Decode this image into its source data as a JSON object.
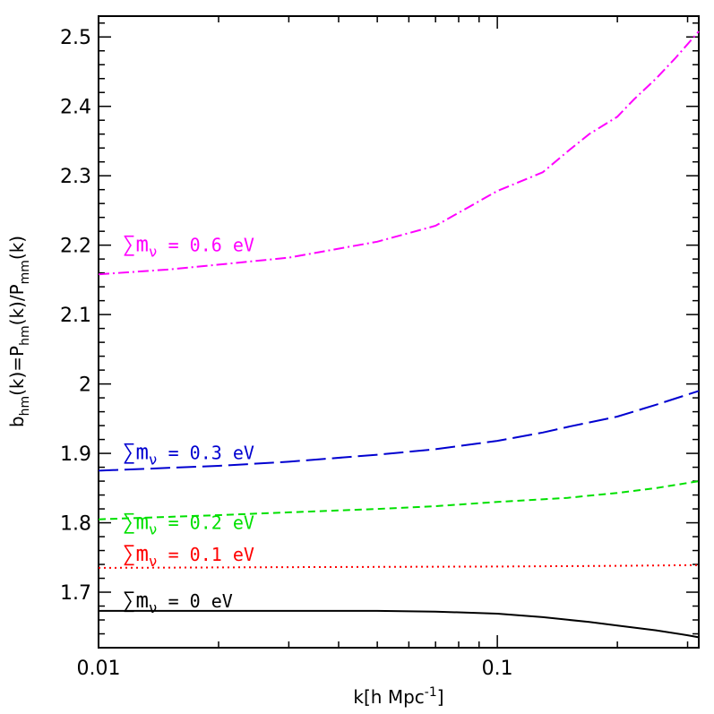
{
  "chart_data": {
    "type": "line",
    "xlabel": "k[h Mpc⁻¹]",
    "ylabel": "b_hm(k)=P_hm(k)/P_mm(k)",
    "xscale": "log",
    "xlim": [
      0.01,
      0.32
    ],
    "ylim": [
      1.62,
      2.53
    ],
    "x_ticks": [
      0.01,
      0.1
    ],
    "x_tick_labels": [
      "0.01",
      "0.1"
    ],
    "y_ticks": [
      1.7,
      1.8,
      1.9,
      2.0,
      2.1,
      2.2,
      2.3,
      2.4,
      2.5
    ],
    "y_tick_labels": [
      "1.7",
      "1.8",
      "1.9",
      "2",
      "2.1",
      "2.2",
      "2.3",
      "2.4",
      "2.5"
    ],
    "grid": false,
    "legend": "none",
    "series": [
      {
        "name": "∑m_ν = 0 eV",
        "color": "#000000",
        "style": "solid",
        "x": [
          0.01,
          0.02,
          0.03,
          0.05,
          0.07,
          0.1,
          0.13,
          0.17,
          0.2,
          0.25,
          0.3,
          0.32
        ],
        "y": [
          1.673,
          1.673,
          1.673,
          1.673,
          1.672,
          1.669,
          1.664,
          1.657,
          1.652,
          1.645,
          1.638,
          1.635
        ]
      },
      {
        "name": "∑m_ν = 0.1 eV",
        "color": "#ff0000",
        "style": "dotted",
        "x": [
          0.01,
          0.03,
          0.1,
          0.2,
          0.32
        ],
        "y": [
          1.735,
          1.736,
          1.737,
          1.738,
          1.739
        ]
      },
      {
        "name": "∑m_ν = 0.2 eV",
        "color": "#00e000",
        "style": "dashed",
        "x": [
          0.01,
          0.02,
          0.03,
          0.05,
          0.07,
          0.1,
          0.15,
          0.2,
          0.25,
          0.32
        ],
        "y": [
          1.805,
          1.811,
          1.815,
          1.82,
          1.824,
          1.83,
          1.836,
          1.843,
          1.85,
          1.86
        ]
      },
      {
        "name": "∑m_ν = 0.3 eV",
        "color": "#0000d0",
        "style": "longdash",
        "x": [
          0.01,
          0.02,
          0.03,
          0.05,
          0.07,
          0.1,
          0.13,
          0.15,
          0.2,
          0.25,
          0.32
        ],
        "y": [
          1.875,
          1.882,
          1.888,
          1.898,
          1.906,
          1.918,
          1.93,
          1.938,
          1.953,
          1.97,
          1.99
        ]
      },
      {
        "name": "∑m_ν = 0.6 eV",
        "color": "#ff00ff",
        "style": "dashdot",
        "x": [
          0.01,
          0.015,
          0.02,
          0.03,
          0.05,
          0.07,
          0.1,
          0.13,
          0.15,
          0.17,
          0.2,
          0.22,
          0.25,
          0.28,
          0.32
        ],
        "y": [
          2.158,
          2.165,
          2.172,
          2.182,
          2.205,
          2.228,
          2.278,
          2.305,
          2.335,
          2.36,
          2.385,
          2.41,
          2.44,
          2.47,
          2.508
        ]
      }
    ],
    "annotations": [
      {
        "text": "∑m",
        "sub": "ν",
        "rest": " = 0.6 eV",
        "color": "#ff00ff",
        "x": 0.0115,
        "y": 2.2
      },
      {
        "text": "∑m",
        "sub": "ν",
        "rest": " = 0.3 eV",
        "color": "#0000d0",
        "x": 0.0115,
        "y": 1.901
      },
      {
        "text": "∑m",
        "sub": "ν",
        "rest": " = 0.2 eV",
        "color": "#00e000",
        "x": 0.0115,
        "y": 1.8
      },
      {
        "text": "∑m",
        "sub": "ν",
        "rest": " = 0.1 eV",
        "color": "#ff0000",
        "x": 0.0115,
        "y": 1.754
      },
      {
        "text": "∑m",
        "sub": "ν",
        "rest": " = 0 eV",
        "color": "#000000",
        "x": 0.0115,
        "y": 1.687
      }
    ]
  }
}
